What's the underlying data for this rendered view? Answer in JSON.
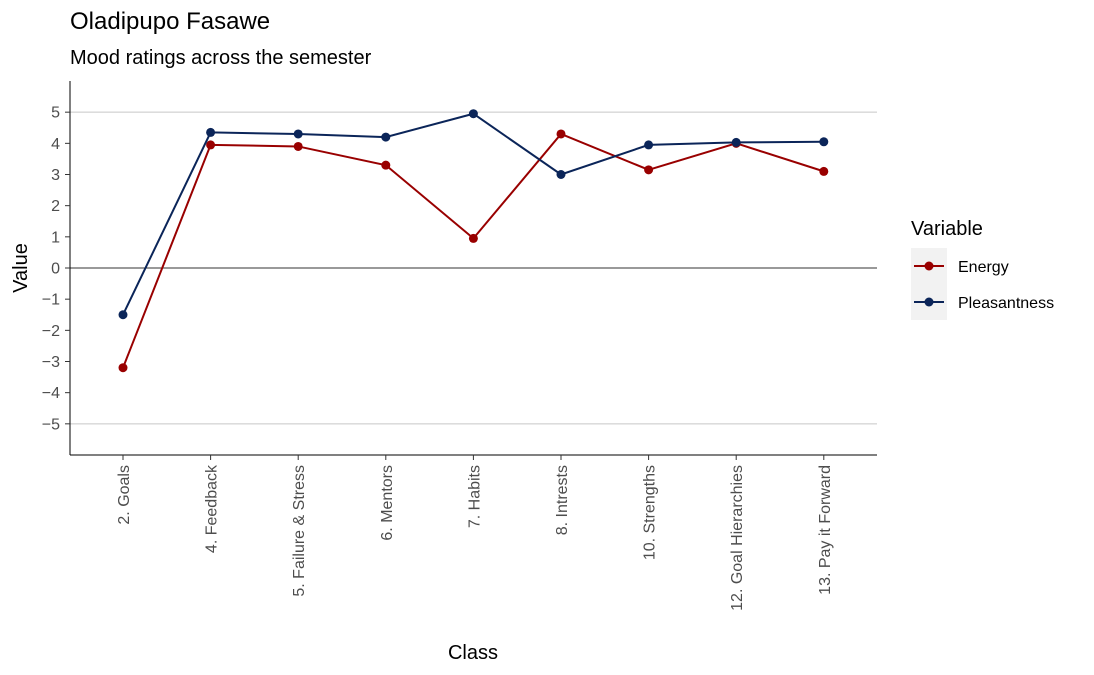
{
  "chart_data": {
    "type": "line",
    "title": "Oladipupo Fasawe",
    "subtitle": "Mood ratings across the semester",
    "xlabel": "Class",
    "ylabel": "Value",
    "categories": [
      "2. Goals",
      "4. Feedback",
      "5. Failure & Stress",
      "6. Mentors",
      "7. Habits",
      "8. Intrests",
      "10. Strengths",
      "12. Goal Hierarchies",
      "13. Pay it Forward"
    ],
    "yticks": [
      -5,
      -4,
      -3,
      -2,
      -1,
      0,
      1,
      2,
      3,
      4,
      5
    ],
    "ylim": [
      -6,
      6
    ],
    "legend": {
      "title": "Variable",
      "position": "right"
    },
    "series": [
      {
        "name": "Energy",
        "color": "#990000",
        "values": [
          -3.2,
          3.95,
          3.9,
          3.3,
          0.95,
          4.3,
          3.15,
          4.0,
          3.1
        ]
      },
      {
        "name": "Pleasantness",
        "color": "#0b2559",
        "values": [
          -1.5,
          4.35,
          4.3,
          4.2,
          4.95,
          3.0,
          3.95,
          4.03,
          4.05
        ]
      }
    ]
  }
}
